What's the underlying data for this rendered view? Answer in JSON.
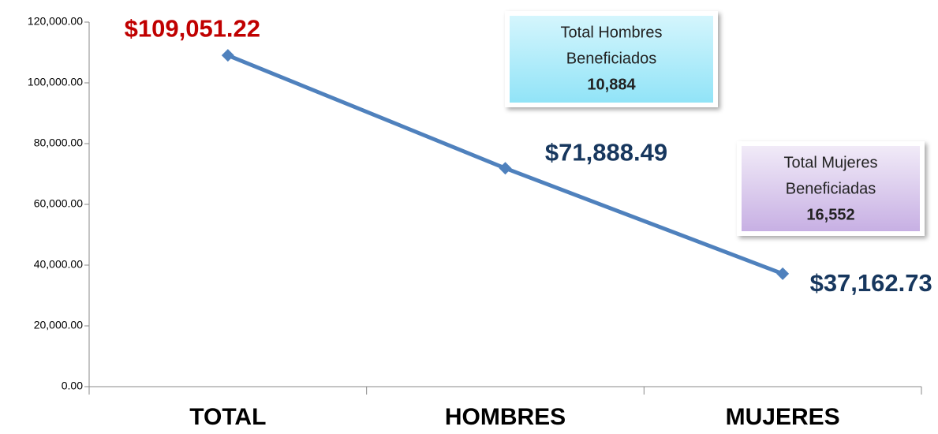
{
  "chart_data": {
    "type": "line",
    "categories": [
      "TOTAL",
      "HOMBRES",
      "MUJERES"
    ],
    "series": [
      {
        "name": null,
        "color": "#4f81bd",
        "values": [
          109051.22,
          71888.49,
          37162.73
        ],
        "value_labels": [
          "$109,051.22",
          "$71,888.49",
          "$37,162.73"
        ],
        "label_colors": [
          "#c00000",
          "#17375e",
          "#17375e"
        ]
      }
    ],
    "ylim": [
      0,
      120000
    ],
    "yticks": [
      {
        "value": 0,
        "label": "0.00"
      },
      {
        "value": 20000,
        "label": "20,000.00"
      },
      {
        "value": 40000,
        "label": "40,000.00"
      },
      {
        "value": 60000,
        "label": "60,000.00"
      },
      {
        "value": 80000,
        "label": "80,000.00"
      },
      {
        "value": 100000,
        "label": "100,000.00"
      },
      {
        "value": 120000,
        "label": "120,000.00"
      }
    ],
    "grid": false,
    "annotations": [
      {
        "lines": [
          "Total Hombres",
          "Beneficiados",
          "10,884"
        ]
      },
      {
        "lines": [
          "Total Mujeres",
          "Beneficiadas",
          "16,552"
        ]
      }
    ]
  }
}
